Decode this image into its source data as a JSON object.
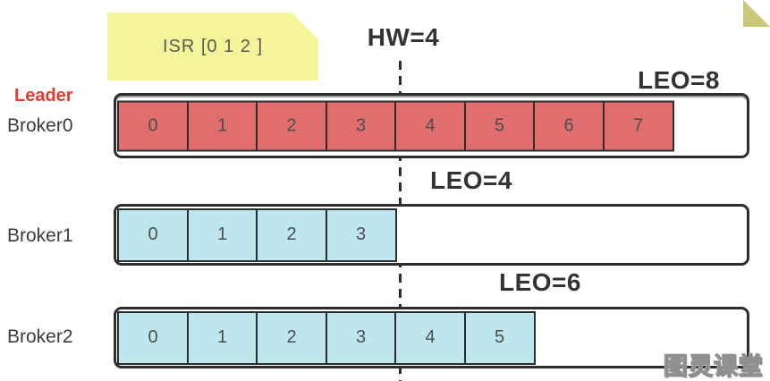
{
  "note": {
    "text": "ISR [0 1 2 ]"
  },
  "hw": {
    "label": "HW=4"
  },
  "brokers": [
    {
      "role": "Leader",
      "name": "Broker0",
      "leo_label": "LEO=8",
      "cells": [
        "0",
        "1",
        "2",
        "3",
        "4",
        "5",
        "6",
        "7"
      ],
      "cell_color": "#e06e6e"
    },
    {
      "name": "Broker1",
      "leo_label": "LEO=4",
      "cells": [
        "0",
        "1",
        "2",
        "3"
      ],
      "cell_color": "#bde6ee"
    },
    {
      "name": "Broker2",
      "leo_label": "LEO=6",
      "cells": [
        "0",
        "1",
        "2",
        "3",
        "4",
        "5"
      ],
      "cell_color": "#bde6ee"
    }
  ],
  "watermark": "图灵课堂",
  "colors": {
    "leader_red": "#e83a2b",
    "red_cell": "#e06e6e",
    "blue_cell": "#bde6ee",
    "note_bg": "#f4f49b",
    "note_fold": "#c8c877",
    "line_border": "#2d2d2d",
    "label_text": "#333333"
  }
}
